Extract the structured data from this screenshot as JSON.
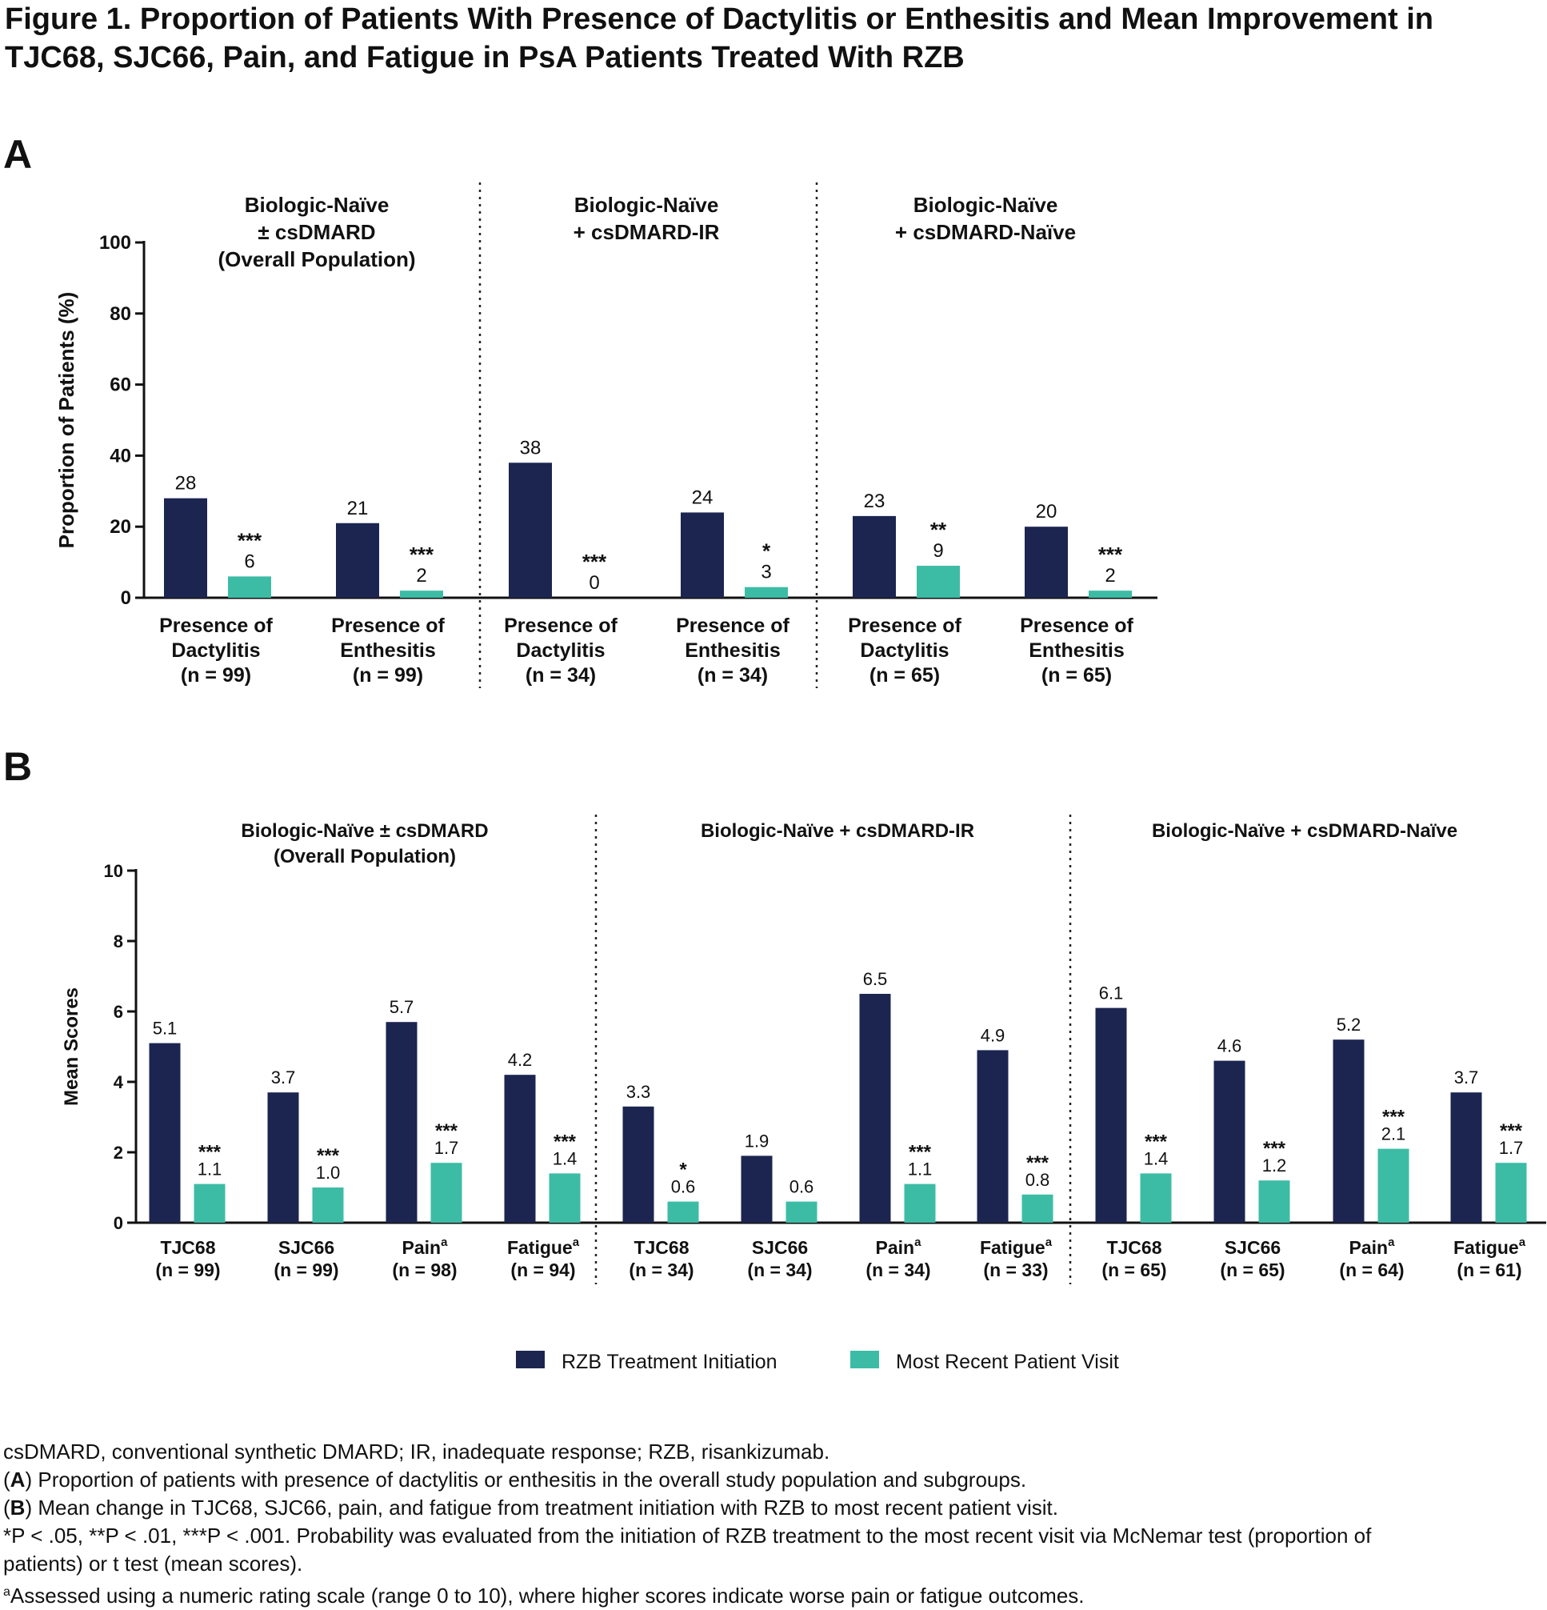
{
  "figure": {
    "title_line1": "Figure 1. Proportion of Patients With Presence of Dactylitis or Enthesitis and Mean Improvement in",
    "title_line2": "TJC68, SJC66, Pain, and Fatigue in PsA Patients Treated With RZB"
  },
  "colors": {
    "baseline": "#1b2550",
    "recent": "#3dbca5"
  },
  "legend": {
    "baseline_label": "RZB Treatment Initiation",
    "recent_label": "Most Recent Patient Visit"
  },
  "footnotes": {
    "abbrev": "csDMARD, conventional synthetic DMARD; IR, inadequate response; RZB, risankizumab.",
    "a_tag": "A",
    "a_text": " Proportion of patients with presence of dactylitis or enthesitis in the overall study population and subgroups.",
    "b_tag": "B",
    "b_text": " Mean change in TJC68, SJC66, pain, and fatigue from treatment initiation with RZB to most recent patient visit.",
    "p_line1": "*P < .05,  **P < .01,  ***P < .001. Probability was evaluated from the initiation of RZB treatment to the most recent visit via McNemar test (proportion of",
    "p_line2": "patients) or t test (mean scores).",
    "sup_a": "a",
    "a_note": "Assessed using a numeric rating scale (range 0 to 10), where higher scores indicate worse pain or fatigue outcomes."
  },
  "chart_data": [
    {
      "panel": "A",
      "type": "bar",
      "ylabel": "Proportion of Patients (%)",
      "ylim": [
        0,
        100
      ],
      "yticks": [
        0,
        20,
        40,
        60,
        80,
        100
      ],
      "groups": [
        {
          "title_lines": [
            "Biologic-Naïve",
            "± csDMARD",
            "(Overall Population)"
          ],
          "categories": [
            {
              "label_lines": [
                "Presence of",
                "Dactylitis",
                "(n = 99)"
              ],
              "baseline": 28,
              "recent": 6,
              "sig": "***"
            },
            {
              "label_lines": [
                "Presence of",
                "Enthesitis",
                "(n = 99)"
              ],
              "baseline": 21,
              "recent": 2,
              "sig": "***"
            }
          ]
        },
        {
          "title_lines": [
            "Biologic-Naïve",
            "+ csDMARD-IR"
          ],
          "categories": [
            {
              "label_lines": [
                "Presence of",
                "Dactylitis",
                "(n = 34)"
              ],
              "baseline": 38,
              "recent": 0,
              "sig": "***"
            },
            {
              "label_lines": [
                "Presence of",
                "Enthesitis",
                "(n = 34)"
              ],
              "baseline": 24,
              "recent": 3,
              "sig": "*"
            }
          ]
        },
        {
          "title_lines": [
            "Biologic-Naïve",
            "+ csDMARD-Naïve"
          ],
          "categories": [
            {
              "label_lines": [
                "Presence of",
                "Dactylitis",
                "(n = 65)"
              ],
              "baseline": 23,
              "recent": 9,
              "sig": "**"
            },
            {
              "label_lines": [
                "Presence of",
                "Enthesitis",
                "(n = 65)"
              ],
              "baseline": 20,
              "recent": 2,
              "sig": "***"
            }
          ]
        }
      ]
    },
    {
      "panel": "B",
      "type": "bar",
      "ylabel": "Mean Scores",
      "ylim": [
        0,
        10
      ],
      "yticks": [
        0,
        2,
        4,
        6,
        8,
        10
      ],
      "groups": [
        {
          "title_lines": [
            "Biologic-Naïve ± csDMARD",
            "(Overall Population)"
          ],
          "categories": [
            {
              "label": "TJC68",
              "n": "(n = 99)",
              "sup": "",
              "baseline": "5.1",
              "recent": "1.1",
              "sig": "***"
            },
            {
              "label": "SJC66",
              "n": "(n = 99)",
              "sup": "",
              "baseline": "3.7",
              "recent": "1.0",
              "sig": "***"
            },
            {
              "label": "Pain",
              "n": "(n = 98)",
              "sup": "a",
              "baseline": "5.7",
              "recent": "1.7",
              "sig": "***"
            },
            {
              "label": "Fatigue",
              "n": "(n = 94)",
              "sup": "a",
              "baseline": "4.2",
              "recent": "1.4",
              "sig": "***"
            }
          ]
        },
        {
          "title_lines": [
            "Biologic-Naïve + csDMARD-IR"
          ],
          "categories": [
            {
              "label": "TJC68",
              "n": "(n = 34)",
              "sup": "",
              "baseline": "3.3",
              "recent": "0.6",
              "sig": "*"
            },
            {
              "label": "SJC66",
              "n": "(n = 34)",
              "sup": "",
              "baseline": "1.9",
              "recent": "0.6",
              "sig": ""
            },
            {
              "label": "Pain",
              "n": "(n = 34)",
              "sup": "a",
              "baseline": "6.5",
              "recent": "1.1",
              "sig": "***"
            },
            {
              "label": "Fatigue",
              "n": "(n = 33)",
              "sup": "a",
              "baseline": "4.9",
              "recent": "0.8",
              "sig": "***"
            }
          ]
        },
        {
          "title_lines": [
            "Biologic-Naïve + csDMARD-Naïve"
          ],
          "categories": [
            {
              "label": "TJC68",
              "n": "(n = 65)",
              "sup": "",
              "baseline": "6.1",
              "recent": "1.4",
              "sig": "***"
            },
            {
              "label": "SJC66",
              "n": "(n = 65)",
              "sup": "",
              "baseline": "4.6",
              "recent": "1.2",
              "sig": "***"
            },
            {
              "label": "Pain",
              "n": "(n = 64)",
              "sup": "a",
              "baseline": "5.2",
              "recent": "2.1",
              "sig": "***"
            },
            {
              "label": "Fatigue",
              "n": "(n = 61)",
              "sup": "a",
              "baseline": "3.7",
              "recent": "1.7",
              "sig": "***"
            }
          ]
        }
      ]
    }
  ]
}
